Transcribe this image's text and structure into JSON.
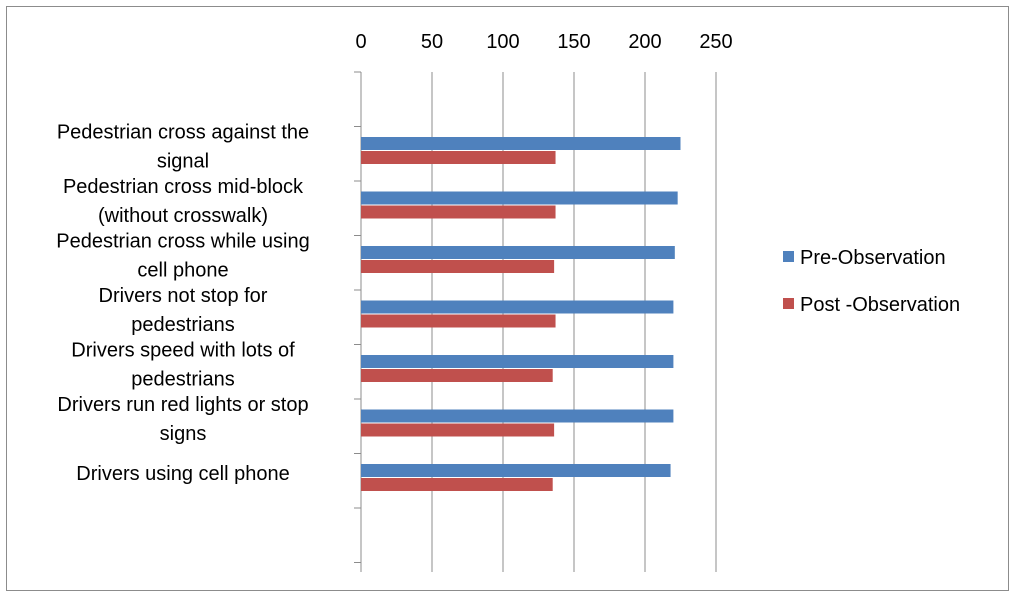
{
  "chart_data": {
    "type": "bar",
    "orientation": "horizontal",
    "title": "",
    "xlabel": "",
    "ylabel": "",
    "xlim": [
      0,
      250
    ],
    "x_ticks": [
      "0",
      "50",
      "100",
      "150",
      "200",
      "250"
    ],
    "x_axis_position": "top",
    "grid": true,
    "legend_position": "right",
    "categories": [
      [
        "Pedestrian cross against the",
        "signal"
      ],
      [
        "Pedestrian cross mid-block",
        "(without crosswalk)"
      ],
      [
        "Pedestrian cross while using",
        "cell phone"
      ],
      [
        "Drivers not stop for",
        "pedestrians"
      ],
      [
        "Drivers speed with lots of",
        "pedestrians"
      ],
      [
        "Drivers run red lights or stop",
        "signs"
      ],
      [
        "Drivers using cell phone"
      ]
    ],
    "series": [
      {
        "name": "Pre-Observation",
        "color": "#4F81BD",
        "values": [
          225,
          223,
          221,
          220,
          220,
          220,
          218
        ]
      },
      {
        "name": "Post -Observation",
        "color": "#C0504D",
        "values": [
          137,
          137,
          136,
          137,
          135,
          136,
          135
        ]
      }
    ]
  }
}
